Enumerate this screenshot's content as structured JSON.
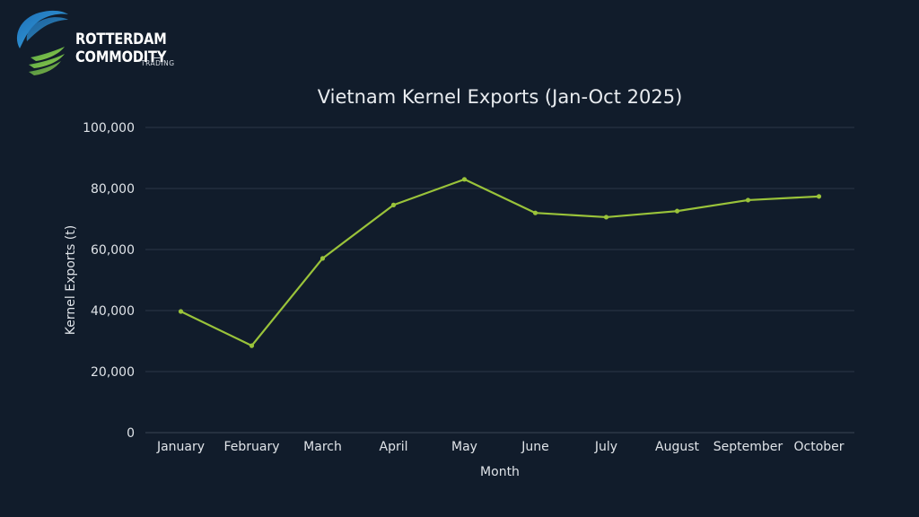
{
  "brand": {
    "name": "ROTTERDAM COMMODITY",
    "tagline": "TRADING"
  },
  "colors": {
    "background": "#111c2b",
    "series_line": "#9ac33a",
    "logo_blue": "#2b8fd1",
    "logo_green": "#8cc63f"
  },
  "chart_data": {
    "type": "line",
    "title": "Vietnam Kernel Exports (Jan-Oct 2025)",
    "xlabel": "Month",
    "ylabel": "Kernel Exports (t)",
    "categories": [
      "January",
      "February",
      "March",
      "April",
      "May",
      "June",
      "July",
      "August",
      "September",
      "October"
    ],
    "series": [
      {
        "values": [
          39700,
          28500,
          57100,
          74600,
          83000,
          72000,
          70600,
          72600,
          76200,
          77400
        ]
      }
    ],
    "ylim": [
      0,
      100000
    ],
    "yticks": [
      0,
      20000,
      40000,
      60000,
      80000,
      100000
    ],
    "ytick_labels": [
      "0",
      "20,000",
      "40,000",
      "60,000",
      "80,000",
      "100,000"
    ],
    "grid": true,
    "legend": "none"
  }
}
